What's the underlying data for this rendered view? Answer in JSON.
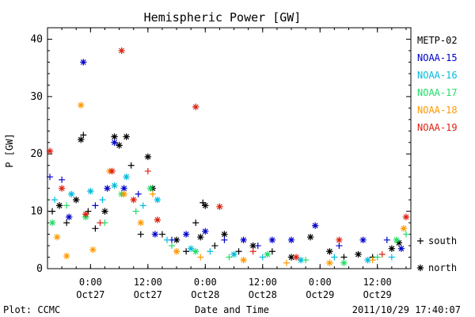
{
  "chart_data": {
    "type": "scatter",
    "title": "Hemispheric Power [GW]",
    "xlabel": "Date and Time",
    "ylabel": "P [GW]",
    "ylim": [
      0,
      42
    ],
    "xlim": [
      "2011-10-26T15:00",
      "2011-10-29T19:00"
    ],
    "yticks": [
      0,
      10,
      20,
      30,
      40
    ],
    "xticks": [
      {
        "t": "2011-10-27T00:00",
        "line1": "0:00",
        "line2": "Oct27"
      },
      {
        "t": "2011-10-27T12:00",
        "line1": "12:00",
        "line2": "Oct27"
      },
      {
        "t": "2011-10-28T00:00",
        "line1": "0:00",
        "line2": "Oct28"
      },
      {
        "t": "2011-10-28T12:00",
        "line1": "12:00",
        "line2": "Oct28"
      },
      {
        "t": "2011-10-29T00:00",
        "line1": "0:00",
        "line2": "Oct29"
      },
      {
        "t": "2011-10-29T12:00",
        "line1": "12:00",
        "line2": "Oct29"
      }
    ],
    "grid": false,
    "legend_position": "right",
    "marker_legend": [
      {
        "symbol": "+",
        "label": "south"
      },
      {
        "symbol": "*",
        "label": "north"
      }
    ],
    "series": [
      {
        "name": "METP-02",
        "color": "#000000",
        "points": [
          {
            "x": "2011-10-26T16:00",
            "y": 10,
            "h": "south"
          },
          {
            "x": "2011-10-26T17:30",
            "y": 11,
            "h": "north"
          },
          {
            "x": "2011-10-26T19:00",
            "y": 8,
            "h": "south"
          },
          {
            "x": "2011-10-26T21:00",
            "y": 12,
            "h": "north"
          },
          {
            "x": "2011-10-26T22:00",
            "y": 22.5,
            "h": "north"
          },
          {
            "x": "2011-10-26T22:30",
            "y": 23.3,
            "h": "south"
          },
          {
            "x": "2011-10-26T23:30",
            "y": 10,
            "h": "south"
          },
          {
            "x": "2011-10-27T01:00",
            "y": 7,
            "h": "south"
          },
          {
            "x": "2011-10-27T03:00",
            "y": 10,
            "h": "north"
          },
          {
            "x": "2011-10-27T05:00",
            "y": 23,
            "h": "north"
          },
          {
            "x": "2011-10-27T06:00",
            "y": 21.5,
            "h": "north"
          },
          {
            "x": "2011-10-27T07:30",
            "y": 23,
            "h": "north"
          },
          {
            "x": "2011-10-27T08:30",
            "y": 18,
            "h": "south"
          },
          {
            "x": "2011-10-27T10:30",
            "y": 6,
            "h": "south"
          },
          {
            "x": "2011-10-27T12:00",
            "y": 19.5,
            "h": "north"
          },
          {
            "x": "2011-10-27T13:00",
            "y": 14,
            "h": "north"
          },
          {
            "x": "2011-10-27T15:00",
            "y": 6,
            "h": "south"
          },
          {
            "x": "2011-10-27T18:00",
            "y": 5,
            "h": "north"
          },
          {
            "x": "2011-10-27T20:00",
            "y": 3,
            "h": "south"
          },
          {
            "x": "2011-10-27T22:00",
            "y": 8,
            "h": "south"
          },
          {
            "x": "2011-10-27T23:00",
            "y": 5.5,
            "h": "north"
          },
          {
            "x": "2011-10-27T23:30",
            "y": 11.5,
            "h": "south"
          },
          {
            "x": "2011-10-28T00:00",
            "y": 11,
            "h": "north"
          },
          {
            "x": "2011-10-28T02:00",
            "y": 4,
            "h": "south"
          },
          {
            "x": "2011-10-28T04:00",
            "y": 6,
            "h": "north"
          },
          {
            "x": "2011-10-28T07:00",
            "y": 3,
            "h": "south"
          },
          {
            "x": "2011-10-28T10:00",
            "y": 4,
            "h": "north"
          },
          {
            "x": "2011-10-28T14:00",
            "y": 3,
            "h": "south"
          },
          {
            "x": "2011-10-28T18:00",
            "y": 2,
            "h": "north"
          },
          {
            "x": "2011-10-28T22:00",
            "y": 5.5,
            "h": "north"
          },
          {
            "x": "2011-10-29T02:00",
            "y": 3,
            "h": "north"
          },
          {
            "x": "2011-10-29T05:00",
            "y": 2,
            "h": "south"
          },
          {
            "x": "2011-10-29T08:00",
            "y": 2.5,
            "h": "north"
          },
          {
            "x": "2011-10-29T11:00",
            "y": 2,
            "h": "south"
          },
          {
            "x": "2011-10-29T15:00",
            "y": 3.5,
            "h": "north"
          },
          {
            "x": "2011-10-29T16:30",
            "y": 4.5,
            "h": "north"
          }
        ]
      },
      {
        "name": "NOAA-15",
        "color": "#0000cc",
        "points": [
          {
            "x": "2011-10-26T15:30",
            "y": 16,
            "h": "south"
          },
          {
            "x": "2011-10-26T18:00",
            "y": 15.5,
            "h": "south"
          },
          {
            "x": "2011-10-26T19:30",
            "y": 9,
            "h": "north"
          },
          {
            "x": "2011-10-26T22:30",
            "y": 36,
            "h": "north"
          },
          {
            "x": "2011-10-27T01:00",
            "y": 11,
            "h": "south"
          },
          {
            "x": "2011-10-27T03:30",
            "y": 14,
            "h": "north"
          },
          {
            "x": "2011-10-27T05:00",
            "y": 22,
            "h": "north"
          },
          {
            "x": "2011-10-27T07:00",
            "y": 14,
            "h": "north"
          },
          {
            "x": "2011-10-27T10:00",
            "y": 13,
            "h": "south"
          },
          {
            "x": "2011-10-27T13:30",
            "y": 6,
            "h": "north"
          },
          {
            "x": "2011-10-27T17:00",
            "y": 5,
            "h": "south"
          },
          {
            "x": "2011-10-27T20:00",
            "y": 6,
            "h": "north"
          },
          {
            "x": "2011-10-28T00:00",
            "y": 6.5,
            "h": "north"
          },
          {
            "x": "2011-10-28T04:00",
            "y": 5,
            "h": "south"
          },
          {
            "x": "2011-10-28T08:00",
            "y": 5,
            "h": "north"
          },
          {
            "x": "2011-10-28T11:00",
            "y": 4,
            "h": "south"
          },
          {
            "x": "2011-10-28T14:00",
            "y": 5,
            "h": "north"
          },
          {
            "x": "2011-10-28T18:00",
            "y": 5,
            "h": "north"
          },
          {
            "x": "2011-10-28T23:00",
            "y": 7.5,
            "h": "north"
          },
          {
            "x": "2011-10-29T04:00",
            "y": 4,
            "h": "south"
          },
          {
            "x": "2011-10-29T09:00",
            "y": 5,
            "h": "north"
          },
          {
            "x": "2011-10-29T14:00",
            "y": 5,
            "h": "south"
          },
          {
            "x": "2011-10-29T17:00",
            "y": 3.5,
            "h": "north"
          }
        ]
      },
      {
        "name": "NOAA-16",
        "color": "#00bbdd",
        "points": [
          {
            "x": "2011-10-26T16:30",
            "y": 12,
            "h": "south"
          },
          {
            "x": "2011-10-26T20:00",
            "y": 13,
            "h": "north"
          },
          {
            "x": "2011-10-27T00:00",
            "y": 13.5,
            "h": "north"
          },
          {
            "x": "2011-10-27T02:30",
            "y": 12,
            "h": "south"
          },
          {
            "x": "2011-10-27T05:00",
            "y": 14.5,
            "h": "north"
          },
          {
            "x": "2011-10-27T07:30",
            "y": 16,
            "h": "north"
          },
          {
            "x": "2011-10-27T11:00",
            "y": 11,
            "h": "south"
          },
          {
            "x": "2011-10-27T14:00",
            "y": 12,
            "h": "north"
          },
          {
            "x": "2011-10-27T16:00",
            "y": 5,
            "h": "south"
          },
          {
            "x": "2011-10-27T21:00",
            "y": 3.5,
            "h": "north"
          },
          {
            "x": "2011-10-28T01:00",
            "y": 3,
            "h": "south"
          },
          {
            "x": "2011-10-28T06:00",
            "y": 2.5,
            "h": "north"
          },
          {
            "x": "2011-10-28T12:00",
            "y": 2,
            "h": "south"
          },
          {
            "x": "2011-10-28T20:00",
            "y": 1.5,
            "h": "north"
          },
          {
            "x": "2011-10-29T03:00",
            "y": 2,
            "h": "south"
          },
          {
            "x": "2011-10-29T10:00",
            "y": 1.5,
            "h": "north"
          },
          {
            "x": "2011-10-29T15:00",
            "y": 2,
            "h": "south"
          }
        ]
      },
      {
        "name": "NOAA-17",
        "color": "#22dd66",
        "points": [
          {
            "x": "2011-10-26T16:00",
            "y": 8,
            "h": "north"
          },
          {
            "x": "2011-10-26T19:00",
            "y": 11,
            "h": "south"
          },
          {
            "x": "2011-10-26T23:00",
            "y": 9,
            "h": "north"
          },
          {
            "x": "2011-10-27T03:00",
            "y": 8,
            "h": "south"
          },
          {
            "x": "2011-10-27T06:30",
            "y": 13,
            "h": "north"
          },
          {
            "x": "2011-10-27T09:30",
            "y": 10,
            "h": "south"
          },
          {
            "x": "2011-10-27T12:30",
            "y": 14,
            "h": "north"
          },
          {
            "x": "2011-10-27T17:00",
            "y": 4,
            "h": "south"
          },
          {
            "x": "2011-10-27T22:00",
            "y": 3,
            "h": "north"
          },
          {
            "x": "2011-10-28T05:00",
            "y": 2,
            "h": "south"
          },
          {
            "x": "2011-10-28T13:00",
            "y": 2.5,
            "h": "north"
          },
          {
            "x": "2011-10-28T21:00",
            "y": 1.5,
            "h": "south"
          },
          {
            "x": "2011-10-29T05:00",
            "y": 1,
            "h": "north"
          },
          {
            "x": "2011-10-29T12:00",
            "y": 2,
            "h": "south"
          },
          {
            "x": "2011-10-29T16:00",
            "y": 5,
            "h": "north"
          },
          {
            "x": "2011-10-29T18:00",
            "y": 6,
            "h": "south"
          }
        ]
      },
      {
        "name": "NOAA-18",
        "color": "#ff9900",
        "points": [
          {
            "x": "2011-10-26T17:00",
            "y": 5.5,
            "h": "north"
          },
          {
            "x": "2011-10-26T19:00",
            "y": 2.2,
            "h": "north"
          },
          {
            "x": "2011-10-26T22:00",
            "y": 28.5,
            "h": "north"
          },
          {
            "x": "2011-10-27T00:30",
            "y": 3.3,
            "h": "north"
          },
          {
            "x": "2011-10-27T04:00",
            "y": 17,
            "h": "north"
          },
          {
            "x": "2011-10-27T07:00",
            "y": 13,
            "h": "north"
          },
          {
            "x": "2011-10-27T10:30",
            "y": 8,
            "h": "north"
          },
          {
            "x": "2011-10-27T13:00",
            "y": 13,
            "h": "south"
          },
          {
            "x": "2011-10-27T18:00",
            "y": 3,
            "h": "north"
          },
          {
            "x": "2011-10-27T23:00",
            "y": 2,
            "h": "south"
          },
          {
            "x": "2011-10-28T08:00",
            "y": 1.5,
            "h": "north"
          },
          {
            "x": "2011-10-28T17:00",
            "y": 1,
            "h": "south"
          },
          {
            "x": "2011-10-29T02:00",
            "y": 1,
            "h": "north"
          },
          {
            "x": "2011-10-29T11:00",
            "y": 1.5,
            "h": "south"
          },
          {
            "x": "2011-10-29T17:30",
            "y": 7,
            "h": "north"
          }
        ]
      },
      {
        "name": "NOAA-19",
        "color": "#dd2211",
        "points": [
          {
            "x": "2011-10-26T15:30",
            "y": 20.5,
            "h": "north"
          },
          {
            "x": "2011-10-26T18:00",
            "y": 14,
            "h": "north"
          },
          {
            "x": "2011-10-26T23:00",
            "y": 9.5,
            "h": "north"
          },
          {
            "x": "2011-10-27T02:00",
            "y": 8,
            "h": "south"
          },
          {
            "x": "2011-10-27T04:30",
            "y": 17,
            "h": "north"
          },
          {
            "x": "2011-10-27T06:30",
            "y": 38,
            "h": "north"
          },
          {
            "x": "2011-10-27T09:00",
            "y": 12,
            "h": "north"
          },
          {
            "x": "2011-10-27T12:00",
            "y": 17,
            "h": "south"
          },
          {
            "x": "2011-10-27T14:00",
            "y": 8.5,
            "h": "north"
          },
          {
            "x": "2011-10-27T22:00",
            "y": 28.2,
            "h": "north"
          },
          {
            "x": "2011-10-28T03:00",
            "y": 10.8,
            "h": "north"
          },
          {
            "x": "2011-10-28T10:00",
            "y": 3,
            "h": "south"
          },
          {
            "x": "2011-10-28T19:00",
            "y": 2,
            "h": "north"
          },
          {
            "x": "2011-10-29T04:00",
            "y": 5,
            "h": "north"
          },
          {
            "x": "2011-10-29T13:00",
            "y": 2.5,
            "h": "south"
          },
          {
            "x": "2011-10-29T18:00",
            "y": 9,
            "h": "north"
          }
        ]
      }
    ]
  },
  "footer": {
    "left": "Plot: CCMC",
    "right": "2011/10/29 17:40:07"
  }
}
